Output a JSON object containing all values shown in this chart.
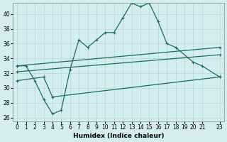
{
  "xlabel": "Humidex (Indice chaleur)",
  "xlim": [
    -0.5,
    23.5
  ],
  "ylim": [
    25.5,
    41.5
  ],
  "yticks": [
    26,
    28,
    30,
    32,
    34,
    36,
    38,
    40
  ],
  "xticks": [
    0,
    1,
    2,
    3,
    4,
    5,
    6,
    7,
    8,
    9,
    10,
    11,
    12,
    13,
    14,
    15,
    16,
    17,
    18,
    19,
    20,
    21,
    23
  ],
  "bg_color": "#d4eeec",
  "grid_color": "#b0d8d4",
  "line_color": "#1a6b5a",
  "line1_x": [
    0,
    1,
    2,
    3,
    4,
    5,
    6,
    7,
    8,
    9,
    10,
    11,
    12,
    13,
    14,
    15,
    16,
    17,
    18,
    20,
    21,
    23
  ],
  "line1_y": [
    33.0,
    33.0,
    31.0,
    28.5,
    26.5,
    27.0,
    32.5,
    36.5,
    35.5,
    36.5,
    37.5,
    37.5,
    39.5,
    41.5,
    41.0,
    41.5,
    39.0,
    36.0,
    35.5,
    33.5,
    33.0,
    31.5
  ],
  "line2_x": [
    0,
    23
  ],
  "line2_y": [
    33.0,
    35.5
  ],
  "line3_x": [
    0,
    23
  ],
  "line3_y": [
    32.2,
    34.5
  ],
  "line4_x": [
    0,
    3,
    4,
    23
  ],
  "line4_y": [
    31.0,
    31.5,
    28.8,
    31.5
  ],
  "marker": "+"
}
